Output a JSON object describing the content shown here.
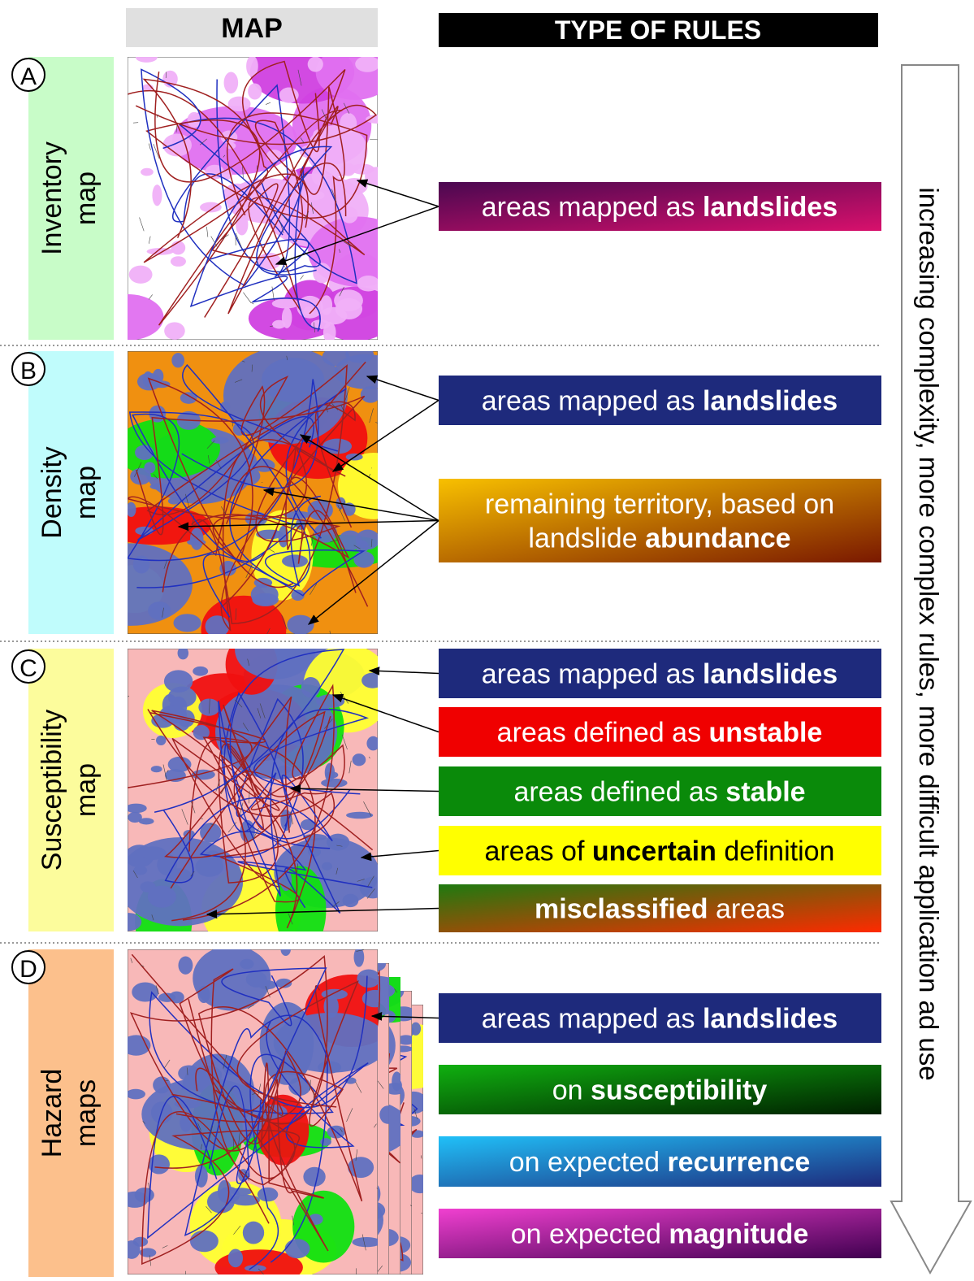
{
  "header": {
    "map": "MAP",
    "rules": "TYPE OF RULES"
  },
  "rows": [
    {
      "letter": "A",
      "label": [
        "Inventory",
        "map"
      ],
      "color": "#c8fcc8",
      "rules": [
        {
          "lines": [
            [
              {
                "text": "areas mapped as "
              },
              {
                "text": "landslides",
                "bold": true
              }
            ]
          ],
          "colors": [
            "#4a0850",
            "#d8106c"
          ]
        }
      ]
    },
    {
      "letter": "B",
      "label": [
        "Density",
        "map"
      ],
      "color": "#c0fcfc",
      "rules": [
        {
          "lines": [
            [
              {
                "text": "areas mapped as "
              },
              {
                "text": "landslides",
                "bold": true
              }
            ]
          ],
          "colors": [
            "#1e2a7c",
            "#1e2a7c"
          ]
        },
        {
          "lines": [
            [
              {
                "text": "remaining territory, based on"
              }
            ],
            [
              {
                "text": "landslide "
              },
              {
                "text": "abundance",
                "bold": true
              }
            ]
          ],
          "colors": [
            "#f8c000",
            "#7a1800"
          ]
        }
      ]
    },
    {
      "letter": "C",
      "label": [
        "Susceptibility",
        "map"
      ],
      "color": "#fcfc9c",
      "rules": [
        {
          "lines": [
            [
              {
                "text": "areas mapped as "
              },
              {
                "text": "landslides",
                "bold": true
              }
            ]
          ],
          "colors": [
            "#1e2a7c",
            "#1e2a7c"
          ]
        },
        {
          "lines": [
            [
              {
                "text": "areas defined as "
              },
              {
                "text": "unstable",
                "bold": true
              }
            ]
          ],
          "colors": [
            "#f00000",
            "#f00000"
          ]
        },
        {
          "lines": [
            [
              {
                "text": "areas defined as "
              },
              {
                "text": "stable",
                "bold": true
              }
            ]
          ],
          "colors": [
            "#0a8a0a",
            "#0a8a0a"
          ]
        },
        {
          "lines": [
            [
              {
                "text": "areas of "
              },
              {
                "text": "uncertain",
                "bold": true
              },
              {
                "text": " definition"
              }
            ]
          ],
          "colors": [
            "#ffff00",
            "#ffff00"
          ],
          "text_color": "#000000"
        },
        {
          "lines": [
            [
              {
                "text": "misclassified",
                "bold": true
              },
              {
                "text": " areas"
              }
            ]
          ],
          "colors": [
            "#1e7a10",
            "#ff2a00"
          ]
        }
      ]
    },
    {
      "letter": "D",
      "label": [
        "Hazard",
        "maps"
      ],
      "color": "#fcc08c",
      "rules": [
        {
          "lines": [
            [
              {
                "text": "areas mapped as "
              },
              {
                "text": "landslides",
                "bold": true
              }
            ]
          ],
          "colors": [
            "#1e2a7c",
            "#1e2a7c"
          ]
        },
        {
          "lines": [
            [
              {
                "text": "on "
              },
              {
                "text": "susceptibility",
                "bold": true
              }
            ]
          ],
          "colors": [
            "#10b010",
            "#002000"
          ]
        },
        {
          "lines": [
            [
              {
                "text": "on expected "
              },
              {
                "text": "recurrence",
                "bold": true
              }
            ]
          ],
          "colors": [
            "#20c0f8",
            "#1e2a7c"
          ]
        },
        {
          "lines": [
            [
              {
                "text": "on expected "
              },
              {
                "text": "magnitude",
                "bold": true
              }
            ]
          ],
          "colors": [
            "#f040d0",
            "#400050"
          ]
        }
      ]
    }
  ],
  "arrow_text": "increasing complexity, more complex rules, more difficult application ad use"
}
